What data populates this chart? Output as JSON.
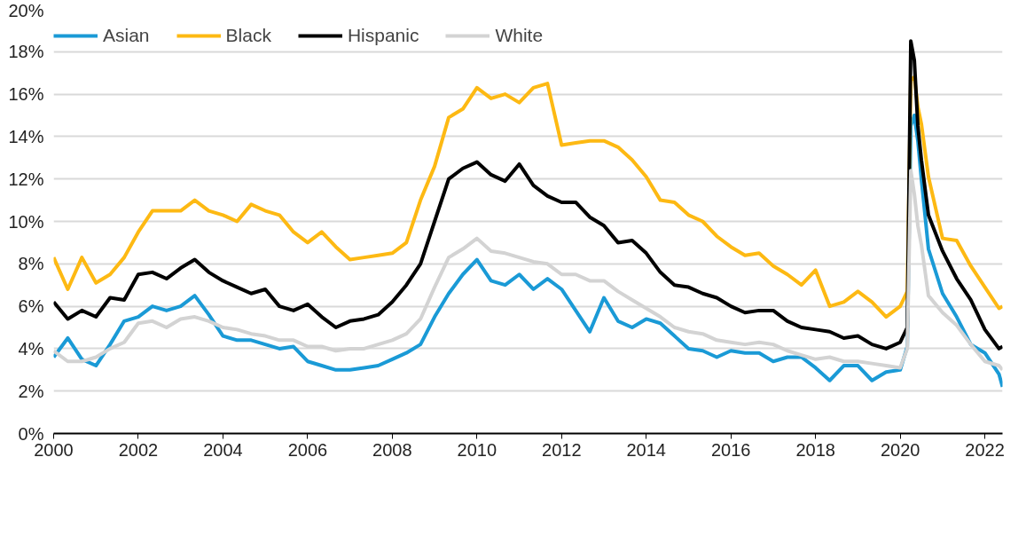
{
  "chart_data": {
    "type": "line",
    "x": [
      "2000-01",
      "2000-05",
      "2000-09",
      "2001-01",
      "2001-05",
      "2001-09",
      "2002-01",
      "2002-05",
      "2002-09",
      "2003-01",
      "2003-05",
      "2003-09",
      "2004-01",
      "2004-05",
      "2004-09",
      "2005-01",
      "2005-05",
      "2005-09",
      "2006-01",
      "2006-05",
      "2006-09",
      "2007-01",
      "2007-05",
      "2007-09",
      "2008-01",
      "2008-05",
      "2008-09",
      "2009-01",
      "2009-05",
      "2009-09",
      "2010-01",
      "2010-05",
      "2010-09",
      "2011-01",
      "2011-05",
      "2011-09",
      "2012-01",
      "2012-05",
      "2012-09",
      "2013-01",
      "2013-05",
      "2013-09",
      "2014-01",
      "2014-05",
      "2014-09",
      "2015-01",
      "2015-05",
      "2015-09",
      "2016-01",
      "2016-05",
      "2016-09",
      "2017-01",
      "2017-05",
      "2017-09",
      "2018-01",
      "2018-05",
      "2018-09",
      "2019-01",
      "2019-05",
      "2019-09",
      "2020-01",
      "2020-03",
      "2020-04",
      "2020-05",
      "2020-06",
      "2020-07",
      "2020-09",
      "2021-01",
      "2021-05",
      "2021-09",
      "2022-01",
      "2022-05",
      "2022-06"
    ],
    "series": [
      {
        "name": "Asian",
        "color": "#1a9ad6",
        "values": [
          3.6,
          4.5,
          3.5,
          3.2,
          4.2,
          5.3,
          5.5,
          6.0,
          5.8,
          6.0,
          6.5,
          5.6,
          4.6,
          4.4,
          4.4,
          4.2,
          4.0,
          4.1,
          3.4,
          3.2,
          3.0,
          3.0,
          3.1,
          3.2,
          3.5,
          3.8,
          4.2,
          5.5,
          6.6,
          7.5,
          8.2,
          7.2,
          7.0,
          7.5,
          6.8,
          7.3,
          6.8,
          5.8,
          4.8,
          6.4,
          5.3,
          5.0,
          5.4,
          5.2,
          4.6,
          4.0,
          3.9,
          3.6,
          3.9,
          3.8,
          3.8,
          3.4,
          3.6,
          3.6,
          3.1,
          2.5,
          3.2,
          3.2,
          2.5,
          2.9,
          3.0,
          4.1,
          14.5,
          15.0,
          13.8,
          12.0,
          8.7,
          6.6,
          5.5,
          4.2,
          3.8,
          2.8,
          2.2
        ]
      },
      {
        "name": "Black",
        "color": "#fdb913",
        "values": [
          8.3,
          6.8,
          8.3,
          7.1,
          7.5,
          8.3,
          9.5,
          10.5,
          10.5,
          10.5,
          11.0,
          10.5,
          10.3,
          10.0,
          10.8,
          10.5,
          10.3,
          9.5,
          9.0,
          9.5,
          8.8,
          8.2,
          8.3,
          8.4,
          8.5,
          9.0,
          11.0,
          12.6,
          14.9,
          15.3,
          16.3,
          15.8,
          16.0,
          15.6,
          16.3,
          16.5,
          13.6,
          13.7,
          13.8,
          13.8,
          13.5,
          12.9,
          12.1,
          11.0,
          10.9,
          10.3,
          10.0,
          9.3,
          8.8,
          8.4,
          8.5,
          7.9,
          7.5,
          7.0,
          7.7,
          6.0,
          6.2,
          6.7,
          6.2,
          5.5,
          6.0,
          6.7,
          16.7,
          16.8,
          15.4,
          14.6,
          12.1,
          9.2,
          9.1,
          7.9,
          6.9,
          5.9,
          6.0
        ]
      },
      {
        "name": "Hispanic",
        "color": "#000000",
        "values": [
          6.2,
          5.4,
          5.8,
          5.5,
          6.4,
          6.3,
          7.5,
          7.6,
          7.3,
          7.8,
          8.2,
          7.6,
          7.2,
          6.9,
          6.6,
          6.8,
          6.0,
          5.8,
          6.1,
          5.5,
          5.0,
          5.3,
          5.4,
          5.6,
          6.2,
          7.0,
          8.0,
          10.0,
          12.0,
          12.5,
          12.8,
          12.2,
          11.9,
          12.7,
          11.7,
          11.2,
          10.9,
          10.9,
          10.2,
          9.8,
          9.0,
          9.1,
          8.5,
          7.6,
          7.0,
          6.9,
          6.6,
          6.4,
          6.0,
          5.7,
          5.8,
          5.8,
          5.3,
          5.0,
          4.9,
          4.8,
          4.5,
          4.6,
          4.2,
          4.0,
          4.3,
          5.0,
          18.5,
          17.6,
          14.5,
          12.9,
          10.3,
          8.6,
          7.3,
          6.3,
          4.9,
          4.0,
          4.1
        ]
      },
      {
        "name": "White",
        "color": "#d3d3d3",
        "values": [
          3.9,
          3.4,
          3.4,
          3.6,
          4.0,
          4.3,
          5.2,
          5.3,
          5.0,
          5.4,
          5.5,
          5.3,
          5.0,
          4.9,
          4.7,
          4.6,
          4.4,
          4.4,
          4.1,
          4.1,
          3.9,
          4.0,
          4.0,
          4.2,
          4.4,
          4.7,
          5.4,
          6.9,
          8.3,
          8.7,
          9.2,
          8.6,
          8.5,
          8.3,
          8.1,
          8.0,
          7.5,
          7.5,
          7.2,
          7.2,
          6.7,
          6.3,
          5.9,
          5.5,
          5.0,
          4.8,
          4.7,
          4.4,
          4.3,
          4.2,
          4.3,
          4.2,
          3.9,
          3.7,
          3.5,
          3.6,
          3.4,
          3.4,
          3.3,
          3.2,
          3.1,
          4.0,
          12.4,
          11.3,
          9.8,
          8.9,
          6.5,
          5.7,
          5.1,
          4.2,
          3.4,
          3.2,
          3.0
        ]
      }
    ],
    "xlim": [
      "2000-01",
      "2022-06"
    ],
    "xticks": [
      "2000",
      "2002",
      "2004",
      "2006",
      "2008",
      "2010",
      "2012",
      "2014",
      "2016",
      "2018",
      "2020",
      "2022"
    ],
    "ylim": [
      0,
      20
    ],
    "yticks": [
      {
        "value": 0,
        "label": "0%"
      },
      {
        "value": 2,
        "label": "2%"
      },
      {
        "value": 4,
        "label": "4%"
      },
      {
        "value": 6,
        "label": "6%"
      },
      {
        "value": 8,
        "label": "8%"
      },
      {
        "value": 10,
        "label": "10%"
      },
      {
        "value": 12,
        "label": "12%"
      },
      {
        "value": 14,
        "label": "14%"
      },
      {
        "value": 16,
        "label": "16%"
      },
      {
        "value": 18,
        "label": "18%"
      },
      {
        "value": 20,
        "label": "20%"
      }
    ],
    "grid": "y",
    "legend": "top",
    "marker": "none",
    "line_style": "solid"
  }
}
